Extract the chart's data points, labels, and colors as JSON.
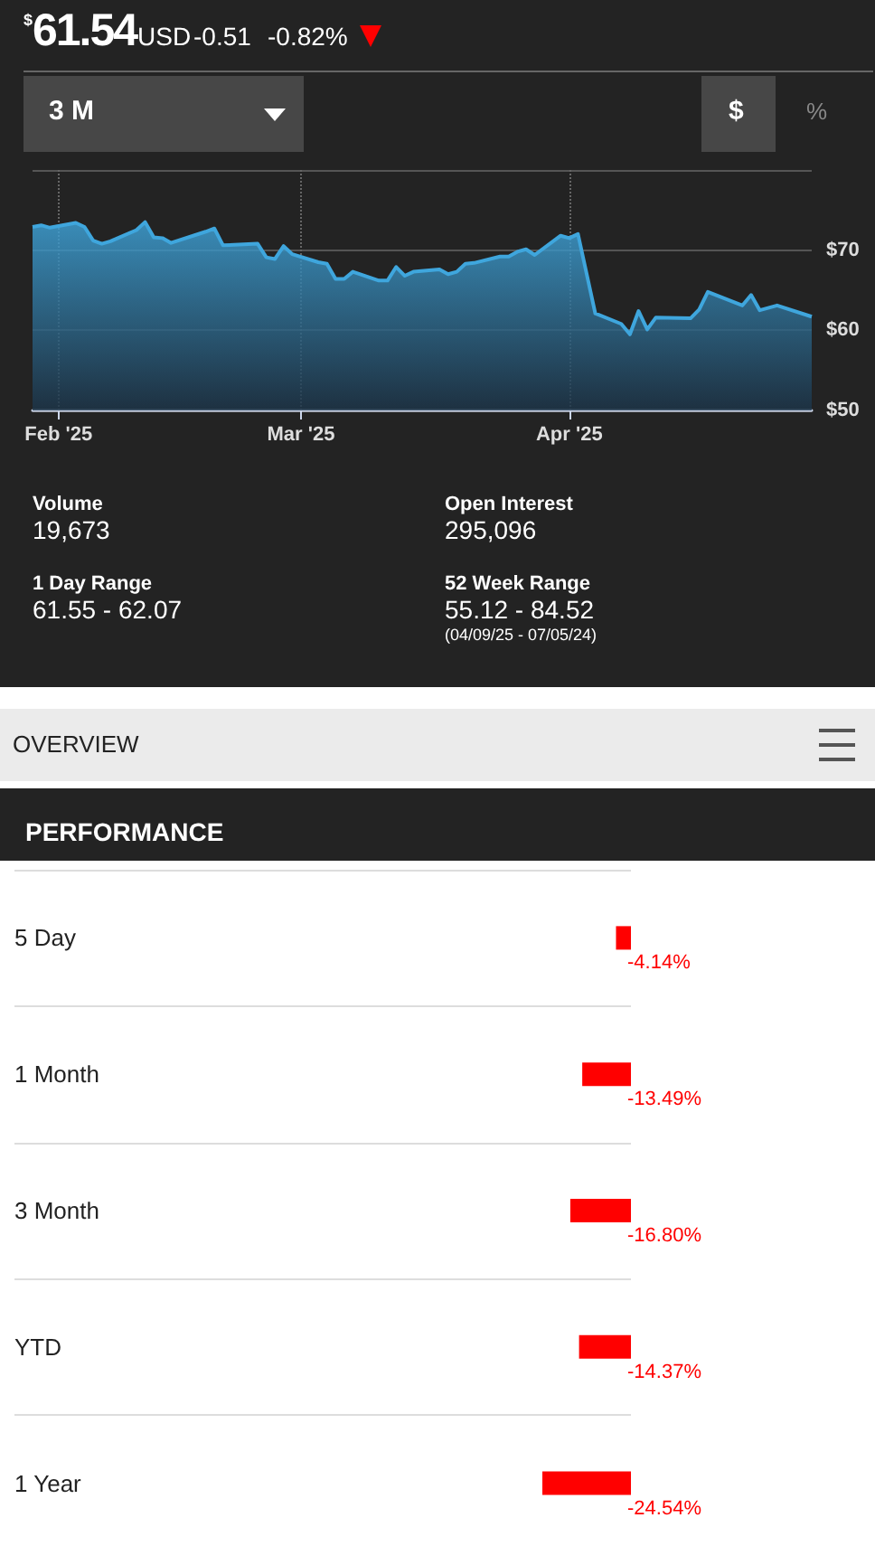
{
  "chart_data": [
    {
      "type": "area",
      "annotations": [
        "$",
        "61.54",
        "USD",
        "-0.51",
        "-0.82%",
        "3 M",
        "$",
        "%",
        "Volume",
        "19,673",
        "Open Interest",
        "295,096",
        "1 Day Range",
        "61.55 - 62.07",
        "52 Week Range",
        "55.12 - 84.52",
        "(04/09/25 - 07/05/24)"
      ],
      "x": [
        "2025-01-29",
        "2025-01-30",
        "2025-01-31",
        "2025-02-03",
        "2025-02-04",
        "2025-02-05",
        "2025-02-06",
        "2025-02-07",
        "2025-02-10",
        "2025-02-11",
        "2025-02-12",
        "2025-02-13",
        "2025-02-14",
        "2025-02-18",
        "2025-02-19",
        "2025-02-20",
        "2025-02-24",
        "2025-02-25",
        "2025-02-26",
        "2025-02-27",
        "2025-02-28",
        "2025-03-03",
        "2025-03-04",
        "2025-03-05",
        "2025-03-06",
        "2025-03-07",
        "2025-03-10",
        "2025-03-11",
        "2025-03-12",
        "2025-03-13",
        "2025-03-14",
        "2025-03-17",
        "2025-03-18",
        "2025-03-19",
        "2025-03-20",
        "2025-03-21",
        "2025-03-24",
        "2025-03-25",
        "2025-03-26",
        "2025-03-27",
        "2025-03-28",
        "2025-03-31",
        "2025-04-01",
        "2025-04-02",
        "2025-04-04",
        "2025-04-07",
        "2025-04-08",
        "2025-04-09",
        "2025-04-10",
        "2025-04-11",
        "2025-04-15",
        "2025-04-16",
        "2025-04-17",
        "2025-04-21",
        "2025-04-22",
        "2025-04-23",
        "2025-04-25",
        "2025-04-29"
      ],
      "values": [
        72.9,
        73.1,
        72.8,
        73.4,
        72.9,
        71.2,
        70.8,
        71.1,
        72.5,
        73.5,
        71.6,
        71.5,
        70.9,
        72.3,
        72.7,
        70.6,
        70.8,
        69.1,
        68.9,
        70.5,
        69.5,
        68.5,
        68.3,
        66.4,
        66.4,
        67.3,
        66.2,
        66.2,
        67.9,
        66.8,
        67.3,
        67.6,
        67.0,
        67.3,
        68.3,
        68.4,
        69.2,
        69.2,
        69.8,
        70.1,
        69.4,
        71.8,
        71.5,
        72.0,
        62.1,
        60.8,
        59.5,
        62.4,
        60.1,
        61.6,
        61.5,
        62.6,
        64.8,
        63.1,
        64.4,
        62.5,
        63.1,
        61.7
      ],
      "color": "#3fa6dd",
      "xlim": [
        "2025-01-29",
        "2025-04-29"
      ],
      "xticks": [
        {
          "value": "2025-02-01",
          "label": "Feb '25"
        },
        {
          "value": "2025-03-01",
          "label": "Mar '25"
        },
        {
          "value": "2025-04-01",
          "label": "Apr '25"
        }
      ],
      "ylim": [
        50,
        80
      ],
      "yticks": [
        {
          "value": 50,
          "label": "$50"
        },
        {
          "value": 60,
          "label": "$60"
        },
        {
          "value": 70,
          "label": "$70"
        },
        {
          "value": 80,
          "label": null
        }
      ],
      "grid": true
    },
    {
      "type": "bar",
      "orientation": "horizontal",
      "title": "PERFORMANCE",
      "annotations": [
        "OVERVIEW"
      ],
      "categories": [
        "5 Day",
        "1 Month",
        "3 Month",
        "YTD",
        "1 Year"
      ],
      "values": [
        -4.14,
        -13.49,
        -16.8,
        -14.37,
        -24.54
      ],
      "color": "#ff0000",
      "value_labels": [
        "-4.14%",
        "-13.49%",
        "-16.80%",
        "-14.37%",
        "-24.54%"
      ],
      "grid": "y"
    }
  ]
}
